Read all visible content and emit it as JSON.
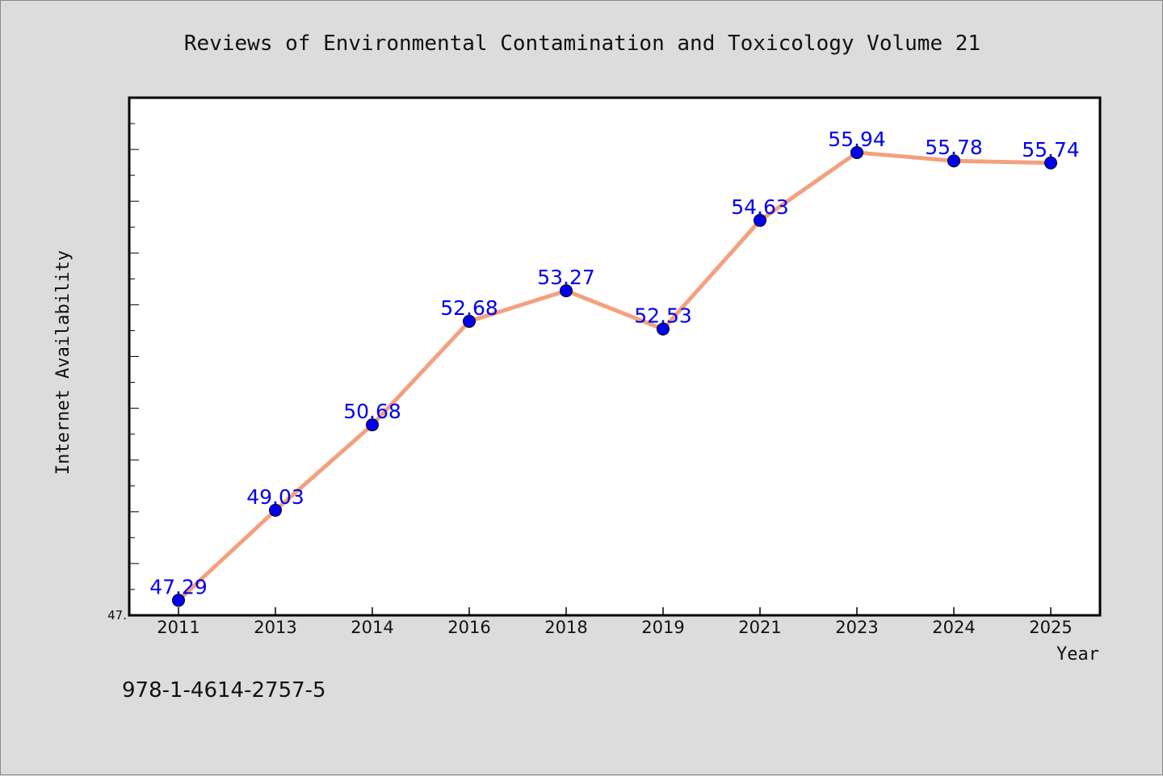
{
  "chart_data": {
    "type": "line",
    "title": "Reviews of Environmental Contamination and Toxicology Volume 21",
    "xlabel": "Year",
    "ylabel": "Internet Availability",
    "categories": [
      "2011",
      "2013",
      "2014",
      "2016",
      "2018",
      "2019",
      "2021",
      "2023",
      "2024",
      "2025"
    ],
    "values": [
      47.29,
      49.03,
      50.68,
      52.68,
      53.27,
      52.53,
      54.63,
      55.94,
      55.78,
      55.74
    ],
    "data_labels": [
      "47.29",
      "49.03",
      "50.68",
      "52.68",
      "53.27",
      "52.53",
      "54.63",
      "55.94",
      "55.78",
      "55.74"
    ],
    "ylim": [
      47.0,
      57.0
    ],
    "y_tick_label": "47.",
    "grid": false,
    "legend": "none",
    "line_color": "#f4a07f",
    "marker_color": "#0000ee"
  },
  "footer": {
    "isbn": "978-1-4614-2757-5"
  }
}
